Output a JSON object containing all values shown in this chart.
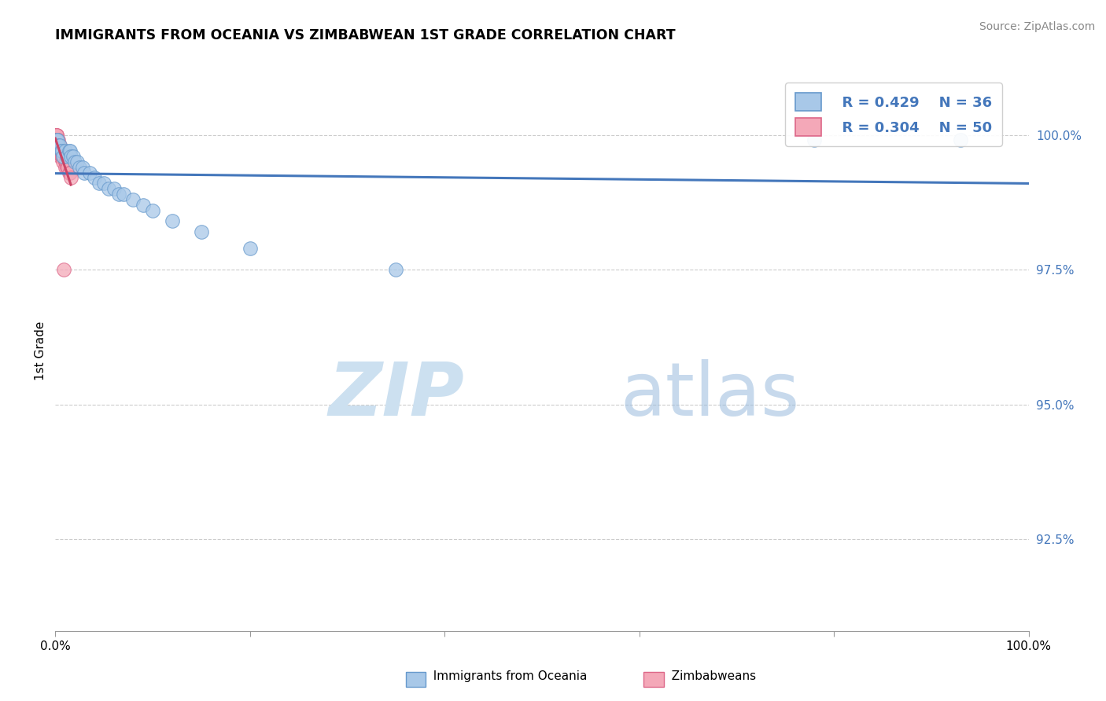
{
  "title": "IMMIGRANTS FROM OCEANIA VS ZIMBABWEAN 1ST GRADE CORRELATION CHART",
  "source": "Source: ZipAtlas.com",
  "ylabel": "1st Grade",
  "ytick_labels": [
    "100.0%",
    "97.5%",
    "95.0%",
    "92.5%"
  ],
  "ytick_values": [
    1.0,
    0.975,
    0.95,
    0.925
  ],
  "xmin": 0.0,
  "xmax": 1.0,
  "ymin": 0.908,
  "ymax": 1.012,
  "legend_labels": [
    "Immigrants from Oceania",
    "Zimbabweans"
  ],
  "legend_r": [
    "R = 0.429",
    "R = 0.304"
  ],
  "legend_n": [
    "N = 36",
    "N = 50"
  ],
  "blue_color": "#a8c8e8",
  "pink_color": "#f4a8b8",
  "blue_edge_color": "#6699cc",
  "pink_edge_color": "#dd6688",
  "blue_line_color": "#4477bb",
  "pink_line_color": "#cc4466",
  "blue_points_x": [
    0.001,
    0.001,
    0.002,
    0.003,
    0.005,
    0.006,
    0.007,
    0.008,
    0.01,
    0.012,
    0.014,
    0.015,
    0.016,
    0.018,
    0.02,
    0.022,
    0.025,
    0.028,
    0.03,
    0.035,
    0.04,
    0.045,
    0.05,
    0.055,
    0.06,
    0.065,
    0.07,
    0.08,
    0.09,
    0.1,
    0.12,
    0.15,
    0.2,
    0.35,
    0.78,
    0.93
  ],
  "blue_points_y": [
    0.999,
    0.998,
    0.999,
    0.998,
    0.998,
    0.997,
    0.997,
    0.996,
    0.997,
    0.996,
    0.997,
    0.997,
    0.996,
    0.996,
    0.995,
    0.995,
    0.994,
    0.994,
    0.993,
    0.993,
    0.992,
    0.991,
    0.991,
    0.99,
    0.99,
    0.989,
    0.989,
    0.988,
    0.987,
    0.986,
    0.984,
    0.982,
    0.979,
    0.975,
    0.999,
    0.999
  ],
  "pink_points_x": [
    0.0,
    0.0,
    0.0,
    0.0,
    0.0,
    0.0,
    0.0,
    0.0,
    0.0,
    0.0,
    0.001,
    0.001,
    0.001,
    0.001,
    0.001,
    0.001,
    0.001,
    0.001,
    0.001,
    0.001,
    0.002,
    0.002,
    0.002,
    0.002,
    0.002,
    0.003,
    0.003,
    0.003,
    0.004,
    0.004,
    0.004,
    0.005,
    0.005,
    0.005,
    0.006,
    0.006,
    0.007,
    0.007,
    0.008,
    0.008,
    0.009,
    0.009,
    0.01,
    0.01,
    0.011,
    0.012,
    0.013,
    0.014,
    0.015,
    0.016
  ],
  "pink_points_y": [
    1.0,
    1.0,
    1.0,
    1.0,
    0.999,
    0.999,
    0.999,
    0.999,
    0.999,
    0.999,
    1.0,
    1.0,
    1.0,
    0.999,
    0.999,
    0.999,
    0.999,
    0.998,
    0.998,
    0.998,
    0.999,
    0.999,
    0.998,
    0.998,
    0.997,
    0.999,
    0.998,
    0.997,
    0.998,
    0.997,
    0.997,
    0.998,
    0.997,
    0.996,
    0.997,
    0.996,
    0.997,
    0.996,
    0.996,
    0.995,
    0.996,
    0.975,
    0.995,
    0.994,
    0.995,
    0.994,
    0.994,
    0.993,
    0.993,
    0.992
  ],
  "background_color": "#ffffff",
  "watermark_color": "#cce0f0",
  "watermark_color2": "#99bbdd"
}
